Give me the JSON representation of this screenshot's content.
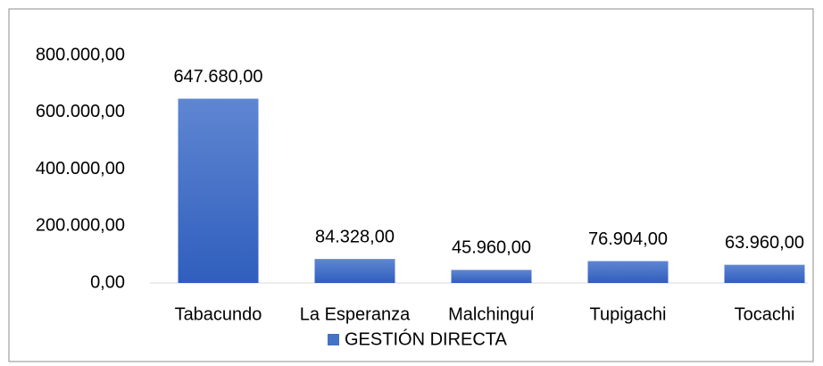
{
  "chart_data": {
    "type": "bar",
    "categories": [
      "Tabacundo",
      "La Esperanza",
      "Malchinguí",
      "Tupigachi",
      "Tocachi"
    ],
    "series": [
      {
        "name": "GESTIÓN DIRECTA",
        "color": "#4472c4",
        "values": [
          647680,
          84328,
          45960,
          76904,
          63960
        ],
        "value_labels": [
          "647.680,00",
          "84.328,00",
          "45.960,00",
          "76.904,00",
          "63.960,00"
        ]
      }
    ],
    "ylim": [
      0,
      800000
    ],
    "yticks": [
      {
        "value": 0,
        "label": "0,00"
      },
      {
        "value": 200000,
        "label": "200.000,00"
      },
      {
        "value": 400000,
        "label": "400.000,00"
      },
      {
        "value": 600000,
        "label": "600.000,00"
      },
      {
        "value": 800000,
        "label": "800.000,00"
      }
    ],
    "grid": false,
    "legend": "bottom"
  }
}
